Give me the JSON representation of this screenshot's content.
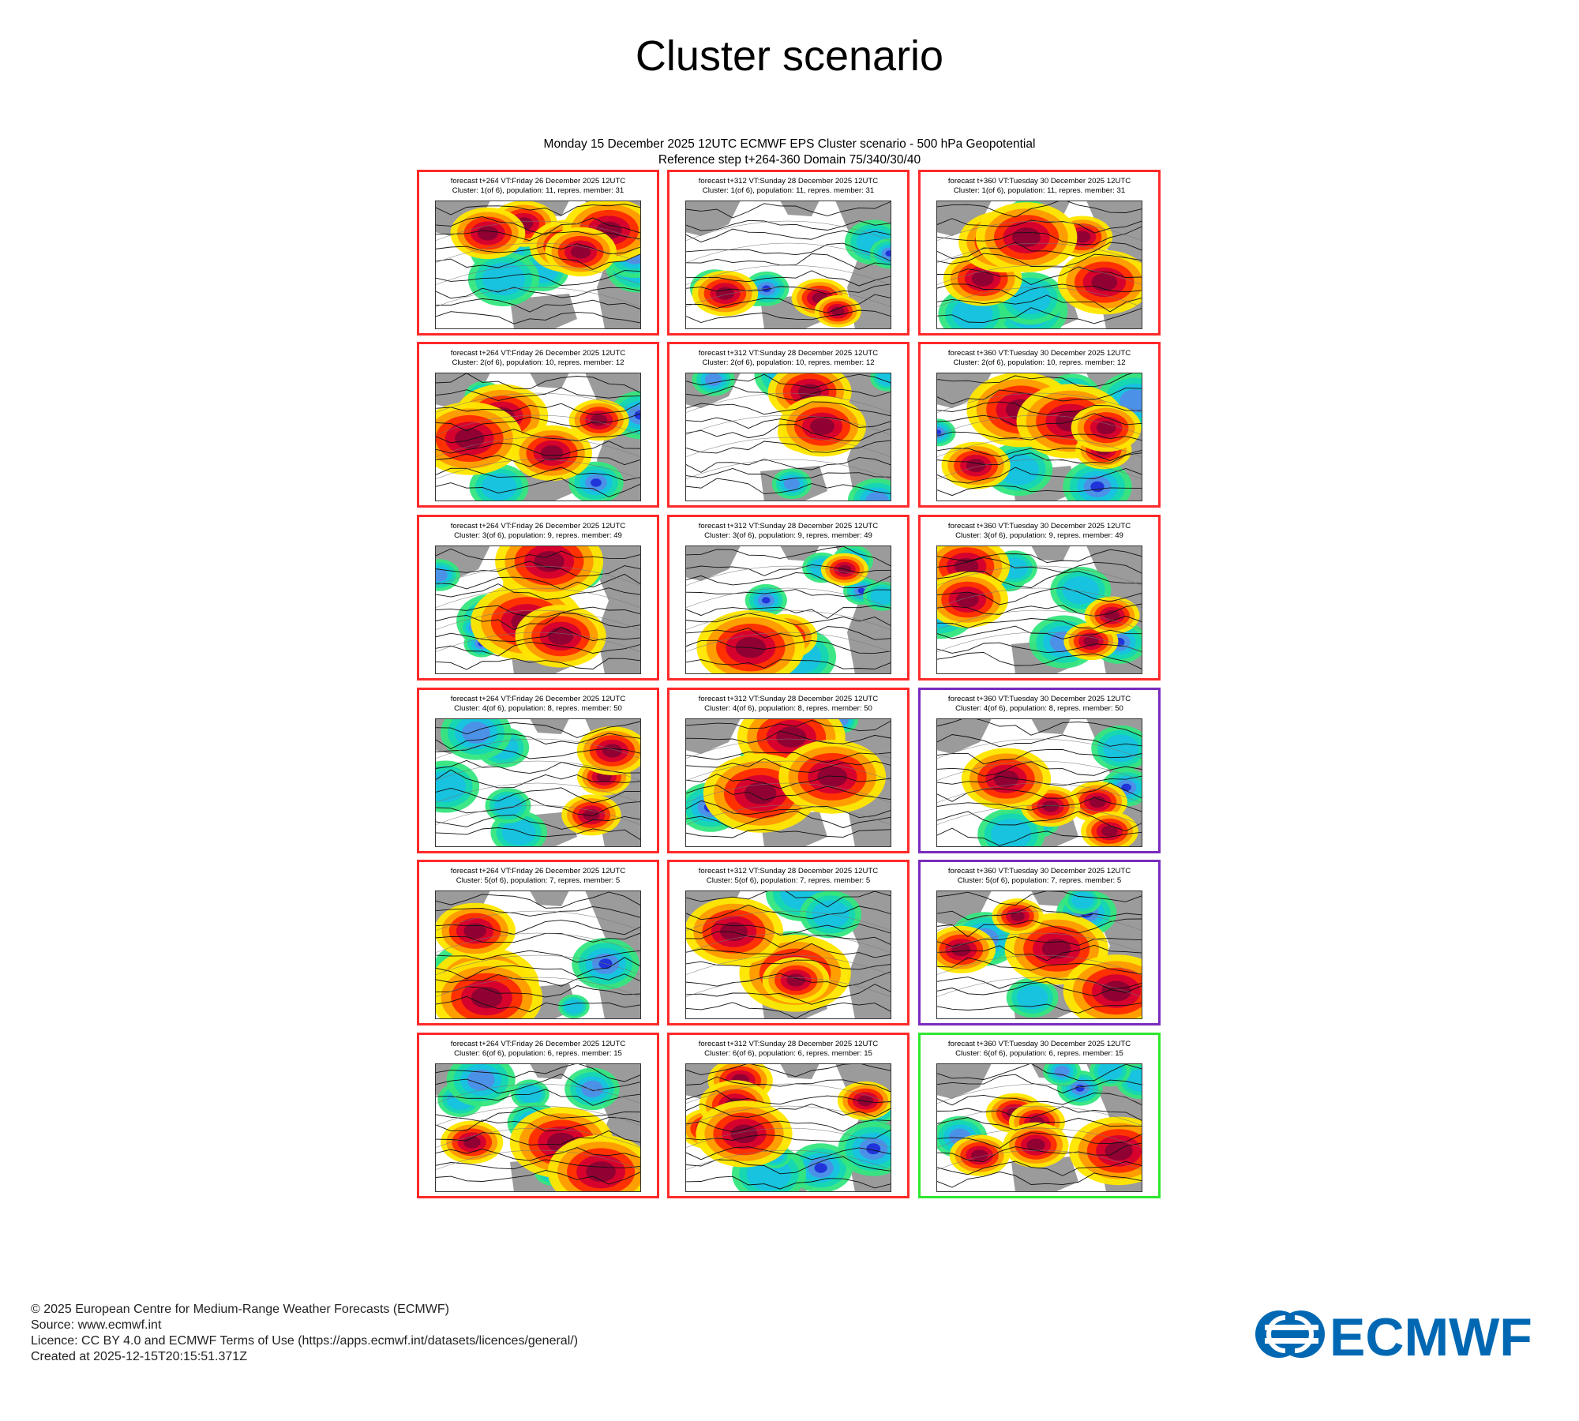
{
  "page": {
    "title": "Cluster scenario"
  },
  "chart_data": {
    "type": "other",
    "header": {
      "line1": "Monday 15 December 2025 12UTC ECMWF EPS Cluster scenario - 500 hPa Geopotential",
      "line2": "Reference step t+264-360 Domain 75/340/30/40"
    },
    "steps": [
      {
        "label": "forecast t+264 VT:Friday 26 December 2025 12UTC"
      },
      {
        "label": "forecast t+312 VT:Sunday 28 December 2025 12UTC"
      },
      {
        "label": "forecast t+360 VT:Tuesday 30 December 2025 12UTC"
      }
    ],
    "clusters": [
      {
        "label": "Cluster: 1(of 6), population: 11, repres. member: 31",
        "frames": [
          "#ff2a2a",
          "#ff2a2a",
          "#ff2a2a"
        ]
      },
      {
        "label": "Cluster: 2(of 6), population: 10, repres. member: 12",
        "frames": [
          "#ff2a2a",
          "#ff2a2a",
          "#ff2a2a"
        ]
      },
      {
        "label": "Cluster: 3(of 6), population: 9, repres. member: 49",
        "frames": [
          "#ff2a2a",
          "#ff2a2a",
          "#ff2a2a"
        ]
      },
      {
        "label": "Cluster: 4(of 6), population: 8, repres. member: 50",
        "frames": [
          "#ff2a2a",
          "#ff2a2a",
          "#7a2bbd"
        ]
      },
      {
        "label": "Cluster: 5(of 6), population: 7, repres. member: 5",
        "frames": [
          "#ff2a2a",
          "#ff2a2a",
          "#7a2bbd"
        ]
      },
      {
        "label": "Cluster: 6(of 6), population: 6, repres. member: 15",
        "frames": [
          "#ff2a2a",
          "#ff2a2a",
          "#2ee62e"
        ]
      }
    ],
    "colors": {
      "positive": [
        "#ffe600",
        "#ff9b00",
        "#ff2d00",
        "#d4002f",
        "#8e0033"
      ],
      "negative": [
        "#34e67e",
        "#15d6b4",
        "#17c2e0",
        "#4f8ee8",
        "#1d2fd8"
      ],
      "land": "#9b9b9b"
    }
  },
  "footer": {
    "copyright": "© 2025 European Centre for Medium-Range Weather Forecasts (ECMWF)",
    "source": "Source: www.ecmwf.int",
    "licence": "Licence: CC BY 4.0 and ECMWF Terms of Use (https://apps.ecmwf.int/datasets/licences/general/)",
    "created": "Created at 2025-12-15T20:15:51.371Z"
  },
  "logo": {
    "text": "ECMWF",
    "color": "#0068b3"
  }
}
